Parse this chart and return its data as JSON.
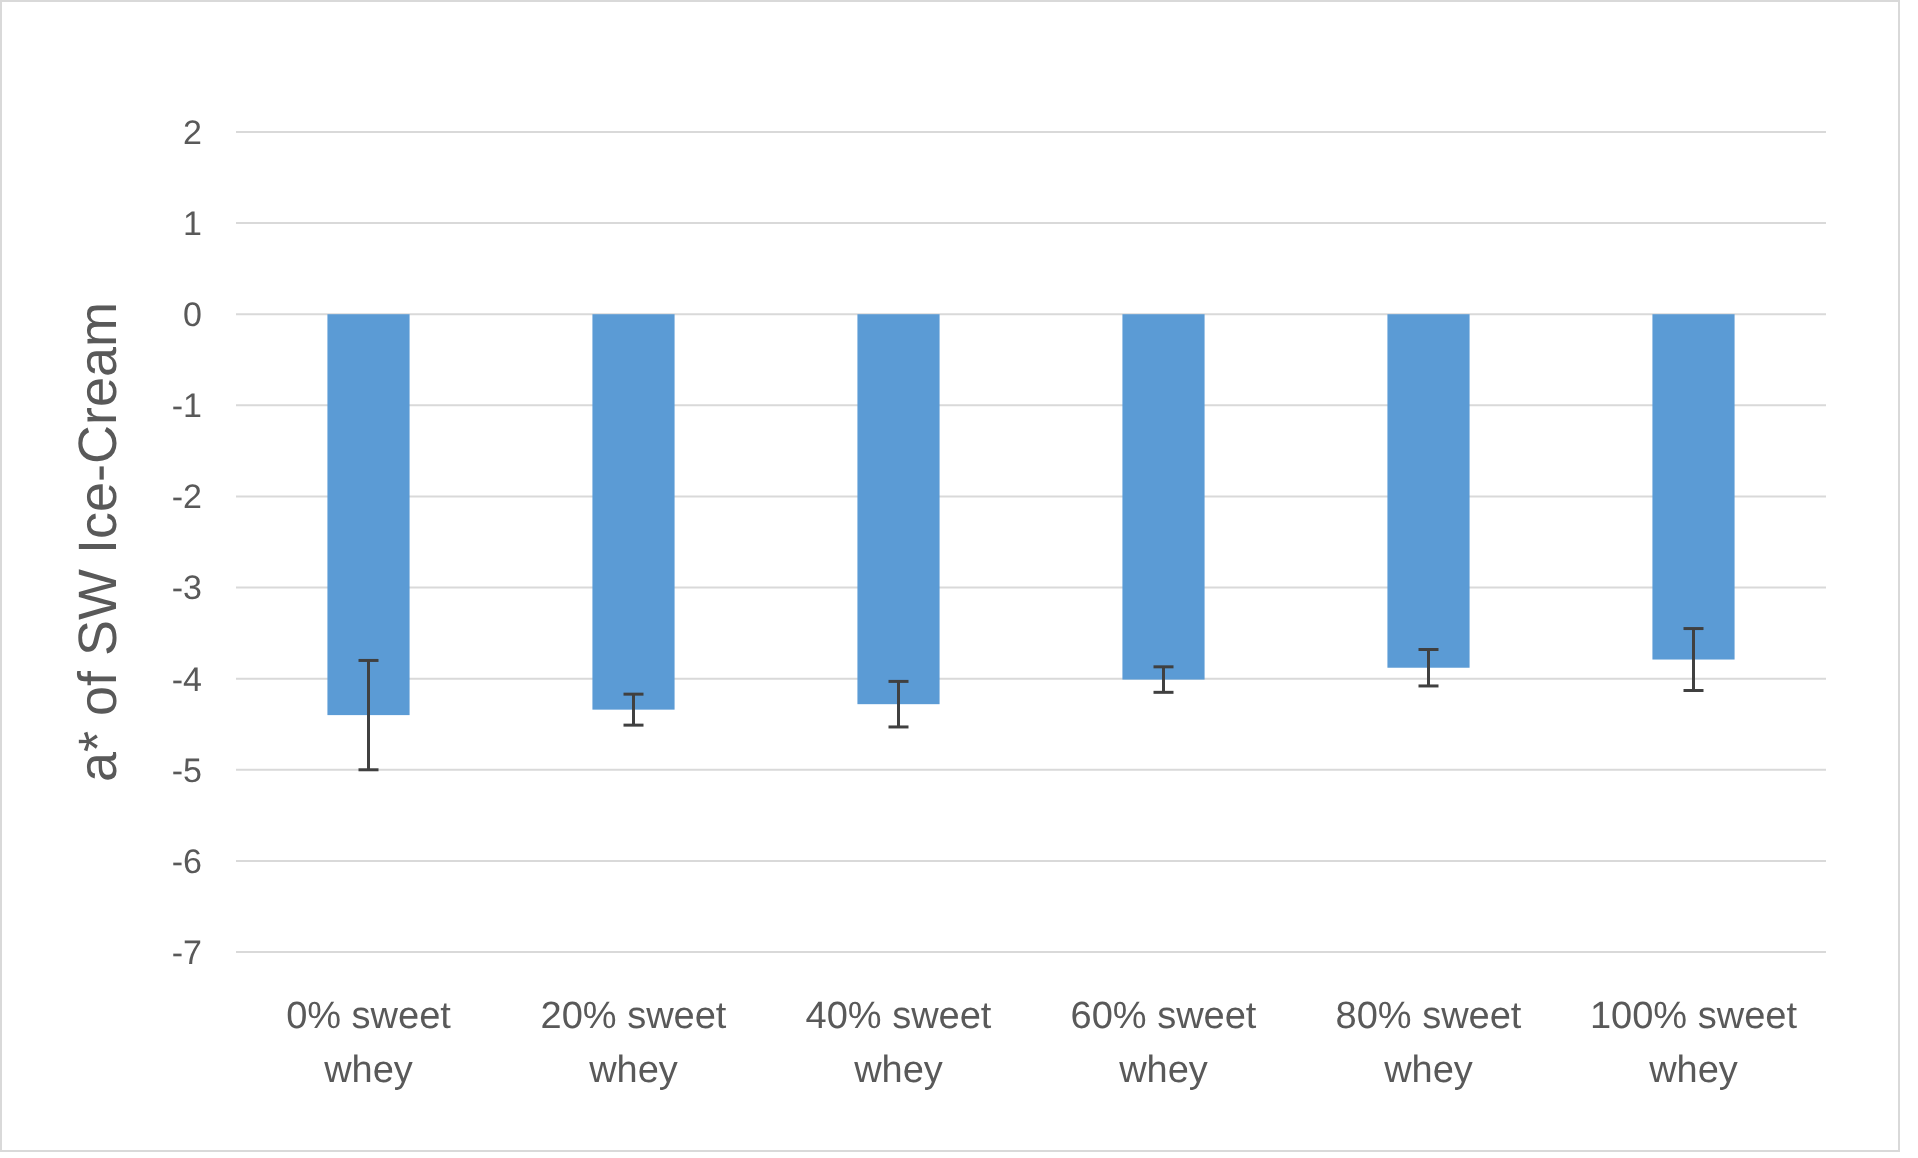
{
  "chart_data": {
    "type": "bar",
    "ylabel": "a* of SW Ice-Cream",
    "categories": [
      "0% sweet whey",
      "20% sweet whey",
      "40% sweet whey",
      "60% sweet whey",
      "80% sweet whey",
      "100% sweet whey"
    ],
    "values": [
      -4.4,
      -4.34,
      -4.28,
      -4.01,
      -3.88,
      -3.79
    ],
    "errors": [
      0.6,
      0.17,
      0.25,
      0.14,
      0.2,
      0.34
    ],
    "color": "#5b9bd5",
    "ylim": [
      -7,
      2
    ],
    "yticks": [
      -7,
      -6,
      -5,
      -4,
      -3,
      -2,
      -1,
      0,
      1,
      2
    ],
    "grid": "y"
  }
}
